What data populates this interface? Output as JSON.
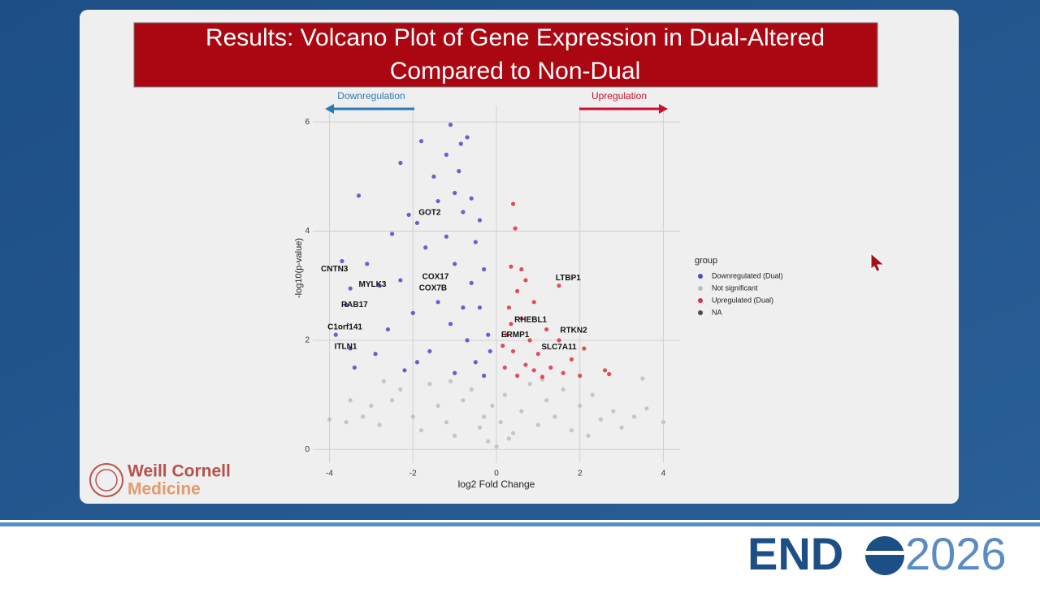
{
  "header": {
    "title_line1": "Results: Volcano Plot of Gene Expression in Dual-Altered",
    "title_line2": "Compared to Non-Dual"
  },
  "logo": {
    "line1": "Weill Cornell",
    "line2": "Medicine"
  },
  "conference": {
    "name": "END",
    "year": "2026"
  },
  "chart_data": {
    "type": "scatter",
    "x_label": "log2 Fold Change",
    "y_label": "-log10(p-value)",
    "xlim": [
      -4.4,
      4.4
    ],
    "ylim": [
      -0.25,
      6.3
    ],
    "xticks": [
      -4,
      -2,
      0,
      2,
      4
    ],
    "yticks": [
      0,
      2,
      4,
      6
    ],
    "grid": true,
    "legend_title": "group",
    "legend_position": "right",
    "direction_labels": {
      "left": "Downregulation",
      "right": "Upregulation"
    },
    "series": [
      {
        "name": "Downregulated (Dual)",
        "color": "#4a48cf",
        "x": [
          -1.1,
          -0.7,
          -0.85,
          -1.8,
          -1.2,
          -2.3,
          -0.9,
          -1.5,
          -3.3,
          -1.4,
          -0.6,
          -1.0,
          -2.1,
          -1.9,
          -0.4,
          -0.8,
          -2.5,
          -1.2,
          -0.5,
          -1.7,
          -3.1,
          -3.7,
          -2.8,
          -3.5,
          -0.3,
          -1.0,
          -2.3,
          -0.6,
          -3.6,
          -1.4,
          -2.0,
          -0.4,
          -3.85,
          -2.6,
          -1.1,
          -0.2,
          -0.7,
          -3.5,
          -2.9,
          -1.6,
          -0.5,
          -3.4,
          -2.2,
          -1.0,
          -0.3,
          -1.9,
          -0.8,
          -0.15
        ],
        "values": [
          5.95,
          5.72,
          5.6,
          5.65,
          5.4,
          5.25,
          5.1,
          5.0,
          4.65,
          4.55,
          4.6,
          4.7,
          4.3,
          4.15,
          4.2,
          4.35,
          3.95,
          3.9,
          3.8,
          3.7,
          3.4,
          3.45,
          3.0,
          2.95,
          3.3,
          3.4,
          3.1,
          3.05,
          2.65,
          2.7,
          2.5,
          2.6,
          2.1,
          2.2,
          2.3,
          2.1,
          2.0,
          1.85,
          1.75,
          1.8,
          1.6,
          1.5,
          1.45,
          1.4,
          1.35,
          1.6,
          2.6,
          1.8
        ]
      },
      {
        "name": "Not significant",
        "color": "#bdbdbd",
        "x": [
          -4.0,
          -3.6,
          -3.2,
          -3.0,
          -2.8,
          -2.5,
          -2.3,
          -2.0,
          -1.8,
          -1.6,
          -1.4,
          -1.2,
          -1.0,
          -0.8,
          -0.6,
          -0.4,
          -0.2,
          -0.1,
          0,
          0.1,
          0.2,
          0.4,
          0.6,
          0.8,
          1.0,
          1.2,
          1.4,
          1.6,
          1.8,
          2.0,
          2.3,
          2.5,
          2.8,
          3.0,
          3.3,
          3.6,
          4.0,
          -3.5,
          -1.1,
          1.1,
          3.5,
          -2.7,
          0.3,
          -0.3,
          2.2
        ],
        "values": [
          0.55,
          0.5,
          0.6,
          0.8,
          0.45,
          0.9,
          1.1,
          0.6,
          0.35,
          1.2,
          0.8,
          0.5,
          0.25,
          0.9,
          1.1,
          0.4,
          0.15,
          0.8,
          0.05,
          0.5,
          1.0,
          0.3,
          0.7,
          1.2,
          0.45,
          0.9,
          0.6,
          1.1,
          0.35,
          0.8,
          1.0,
          0.55,
          0.7,
          0.4,
          0.6,
          0.75,
          0.5,
          0.9,
          1.25,
          1.28,
          1.3,
          1.25,
          0.2,
          0.6,
          0.25
        ]
      },
      {
        "name": "Upregulated (Dual)",
        "color": "#d8333f",
        "x": [
          0.4,
          0.45,
          0.35,
          0.6,
          1.5,
          0.7,
          0.5,
          0.3,
          0.9,
          0.6,
          1.2,
          0.25,
          1.5,
          0.8,
          2.1,
          0.4,
          1.0,
          1.8,
          0.2,
          0.7,
          1.3,
          2.6,
          2.7,
          0.5,
          1.1,
          1.6,
          0.15,
          0.9,
          2.0,
          0.35
        ],
        "values": [
          4.5,
          4.05,
          3.35,
          3.3,
          3.0,
          3.1,
          2.9,
          2.6,
          2.7,
          2.4,
          2.2,
          2.1,
          2.0,
          2.0,
          1.85,
          1.8,
          1.75,
          1.65,
          1.5,
          1.55,
          1.5,
          1.45,
          1.38,
          1.35,
          1.33,
          1.4,
          1.9,
          1.45,
          1.35,
          2.3
        ]
      },
      {
        "name": "NA",
        "color": "#4d4d4d",
        "x": [],
        "values": []
      }
    ],
    "annotations": [
      {
        "text": "GOT2",
        "x": -1.6,
        "y": 4.34
      },
      {
        "text": "CNTN3",
        "x": -3.88,
        "y": 3.3
      },
      {
        "text": "MYLK3",
        "x": -2.97,
        "y": 3.02
      },
      {
        "text": "COX17",
        "x": -1.46,
        "y": 3.16
      },
      {
        "text": "COX7B",
        "x": -1.52,
        "y": 2.95
      },
      {
        "text": "RAB17",
        "x": -3.4,
        "y": 2.65
      },
      {
        "text": "C1orf141",
        "x": -3.63,
        "y": 2.24
      },
      {
        "text": "ITLN1",
        "x": -3.61,
        "y": 1.88
      },
      {
        "text": "LTBP1",
        "x": 1.72,
        "y": 3.14
      },
      {
        "text": "RHEBL1",
        "x": 0.82,
        "y": 2.37
      },
      {
        "text": "ERMP1",
        "x": 0.45,
        "y": 2.1
      },
      {
        "text": "RTKN2",
        "x": 1.85,
        "y": 2.18
      },
      {
        "text": "SLC7A11",
        "x": 1.5,
        "y": 1.87
      }
    ]
  }
}
